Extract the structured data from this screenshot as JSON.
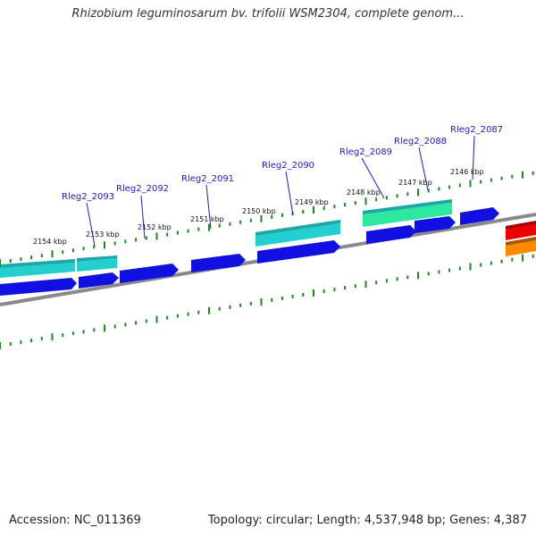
{
  "title": "Rhizobium leguminosarum bv. trifolii WSM2304, complete genom...",
  "accession_text": "Accession: NC_011369",
  "summary_text": "Topology: circular; Length: 4,537,948 bp; Genes: 4,387",
  "colors": {
    "backbone": "#8a8a8a",
    "cds": "#1010e0",
    "tick": "#1a8a1a",
    "label": "#1a1acc",
    "cyan": "#23cfcf",
    "teal": "#1aa8a8",
    "mint": "#2ee8a0",
    "red": "#ee0000",
    "orange": "#ff8a00"
  },
  "kbp_labels": [
    {
      "text": "2154 kbp"
    },
    {
      "text": "2153 kbp"
    },
    {
      "text": "2152 kbp"
    },
    {
      "text": "2151 kbp"
    },
    {
      "text": "2150 kbp"
    },
    {
      "text": "2149 kbp"
    },
    {
      "text": "2148 kbp"
    },
    {
      "text": "2147 kbp"
    },
    {
      "text": "2146 kbp"
    }
  ],
  "gene_labels": [
    {
      "text": "Rleg2_2093"
    },
    {
      "text": "Rleg2_2092"
    },
    {
      "text": "Rleg2_2091"
    },
    {
      "text": "Rleg2_2090"
    },
    {
      "text": "Rleg2_2089"
    },
    {
      "text": "Rleg2_2088"
    },
    {
      "text": "Rleg2_2087"
    }
  ]
}
